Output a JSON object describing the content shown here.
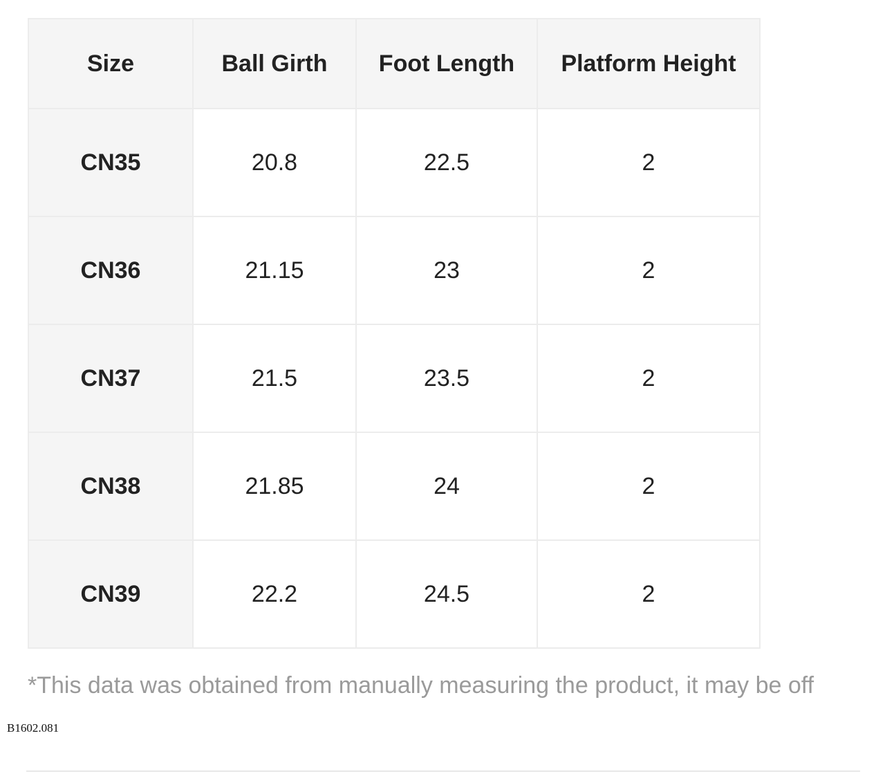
{
  "table": {
    "headers": [
      "Size",
      "Ball Girth",
      "Foot Length",
      "Platform Height"
    ],
    "rows": [
      {
        "size": "CN35",
        "ball_girth": "20.8",
        "foot_length": "22.5",
        "platform_height": "2"
      },
      {
        "size": "CN36",
        "ball_girth": "21.15",
        "foot_length": "23",
        "platform_height": "2"
      },
      {
        "size": "CN37",
        "ball_girth": "21.5",
        "foot_length": "23.5",
        "platform_height": "2"
      },
      {
        "size": "CN38",
        "ball_girth": "21.85",
        "foot_length": "24",
        "platform_height": "2"
      },
      {
        "size": "CN39",
        "ball_girth": "22.2",
        "foot_length": "24.5",
        "platform_height": "2"
      }
    ]
  },
  "note": "*This data was obtained from manually measuring the product, it may be off",
  "sku": "B1602.081"
}
